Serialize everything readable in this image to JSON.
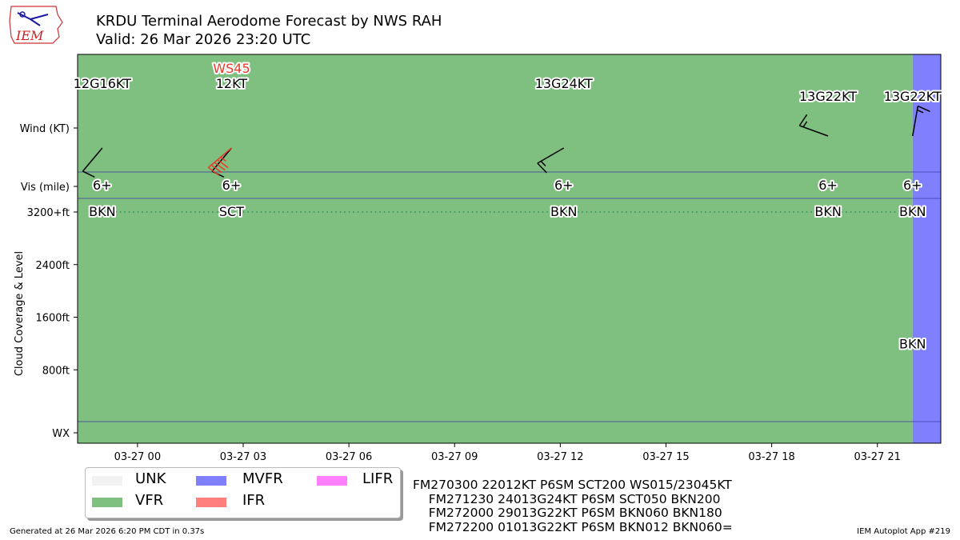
{
  "header": {
    "title": "KRDU Terminal Aerodome Forecast by NWS RAH",
    "valid": "Valid: 26 Mar 2026 23:20 UTC",
    "logo_text": "IEM"
  },
  "legend": [
    {
      "label": "UNK",
      "color": "#f2f2f2"
    },
    {
      "label": "MVFR",
      "color": "#8080ff"
    },
    {
      "label": "LIFR",
      "color": "#ff80ff"
    },
    {
      "label": "VFR",
      "color": "#7fbf7f"
    },
    {
      "label": "IFR",
      "color": "#ff7f7f"
    }
  ],
  "taf_lines": [
    "FM270300 22012KT P6SM SCT200 WS015/23045KT",
    "    FM271230 24013G24KT P6SM SCT050 BKN200",
    "    FM272000 29013G22KT P6SM BKN060 BKN180",
    "    FM272200 01013G22KT P6SM BKN012 BKN060="
  ],
  "footer": {
    "left": "Generated at 26 Mar 2026 6:20 PM CDT in 0.37s",
    "right": "IEM Autoplot App #219"
  },
  "chart_data": {
    "type": "timeline",
    "x_unit": "hours after 03-27 00Z",
    "xlim": [
      -1.7,
      22.8
    ],
    "xticks": [
      {
        "x": 0,
        "label": "03-27 00"
      },
      {
        "x": 3,
        "label": "03-27 03"
      },
      {
        "x": 6,
        "label": "03-27 06"
      },
      {
        "x": 9,
        "label": "03-27 09"
      },
      {
        "x": 12,
        "label": "03-27 12"
      },
      {
        "x": 15,
        "label": "03-27 15"
      },
      {
        "x": 18,
        "label": "03-27 18"
      },
      {
        "x": 21,
        "label": "03-27 21"
      }
    ],
    "y_rows": [
      "Wind (KT)",
      "Vis (mile)",
      "3200+ft",
      "2400ft",
      "1600ft",
      "800ft",
      "WX"
    ],
    "ylabel": "Cloud Coverage & Level",
    "colors": {
      "VFR": "#7fbf7f",
      "MVFR": "#8080ff",
      "line": "#3a3aa8",
      "dotted": "#2e8b57",
      "wind": "#000000",
      "ws": "#e83a2a"
    },
    "periods": [
      {
        "start": -1.7,
        "end": 22.0,
        "category": "VFR"
      },
      {
        "start": 22.0,
        "end": 22.8,
        "category": "MVFR"
      }
    ],
    "forecasts": [
      {
        "x": -1.0,
        "wind_label": "12G16KT",
        "wind_dir": 220,
        "wind_speed": 12,
        "gust": 16,
        "vis": "6+",
        "cloud": "BKN",
        "cloud_ft": 3200,
        "ws": ""
      },
      {
        "x": 2.67,
        "wind_label": "12KT",
        "wind_dir": 220,
        "wind_speed": 12,
        "gust": null,
        "vis": "6+",
        "cloud": "SCT",
        "cloud_ft": 3200,
        "ws": "WS45",
        "ws_dir": 230,
        "ws_speed": 45
      },
      {
        "x": 12.1,
        "wind_label": "13G24KT",
        "wind_dir": 240,
        "wind_speed": 13,
        "gust": 24,
        "vis": "6+",
        "cloud": "BKN",
        "cloud_ft": 3200,
        "ws": ""
      },
      {
        "x": 19.6,
        "wind_label": "13G22KT",
        "wind_dir": 290,
        "wind_speed": 13,
        "gust": 22,
        "vis": "6+",
        "cloud": "BKN",
        "cloud_ft": 3200,
        "ws": ""
      },
      {
        "x": 22.0,
        "wind_label": "13G22KT",
        "wind_dir": 10,
        "wind_speed": 13,
        "gust": 22,
        "vis": "6+",
        "cloud": "BKN",
        "cloud_ft": 3200,
        "ws": ""
      }
    ],
    "extra_clouds": [
      {
        "x": 22.0,
        "cloud": "BKN",
        "cloud_ft": 1200
      }
    ]
  }
}
